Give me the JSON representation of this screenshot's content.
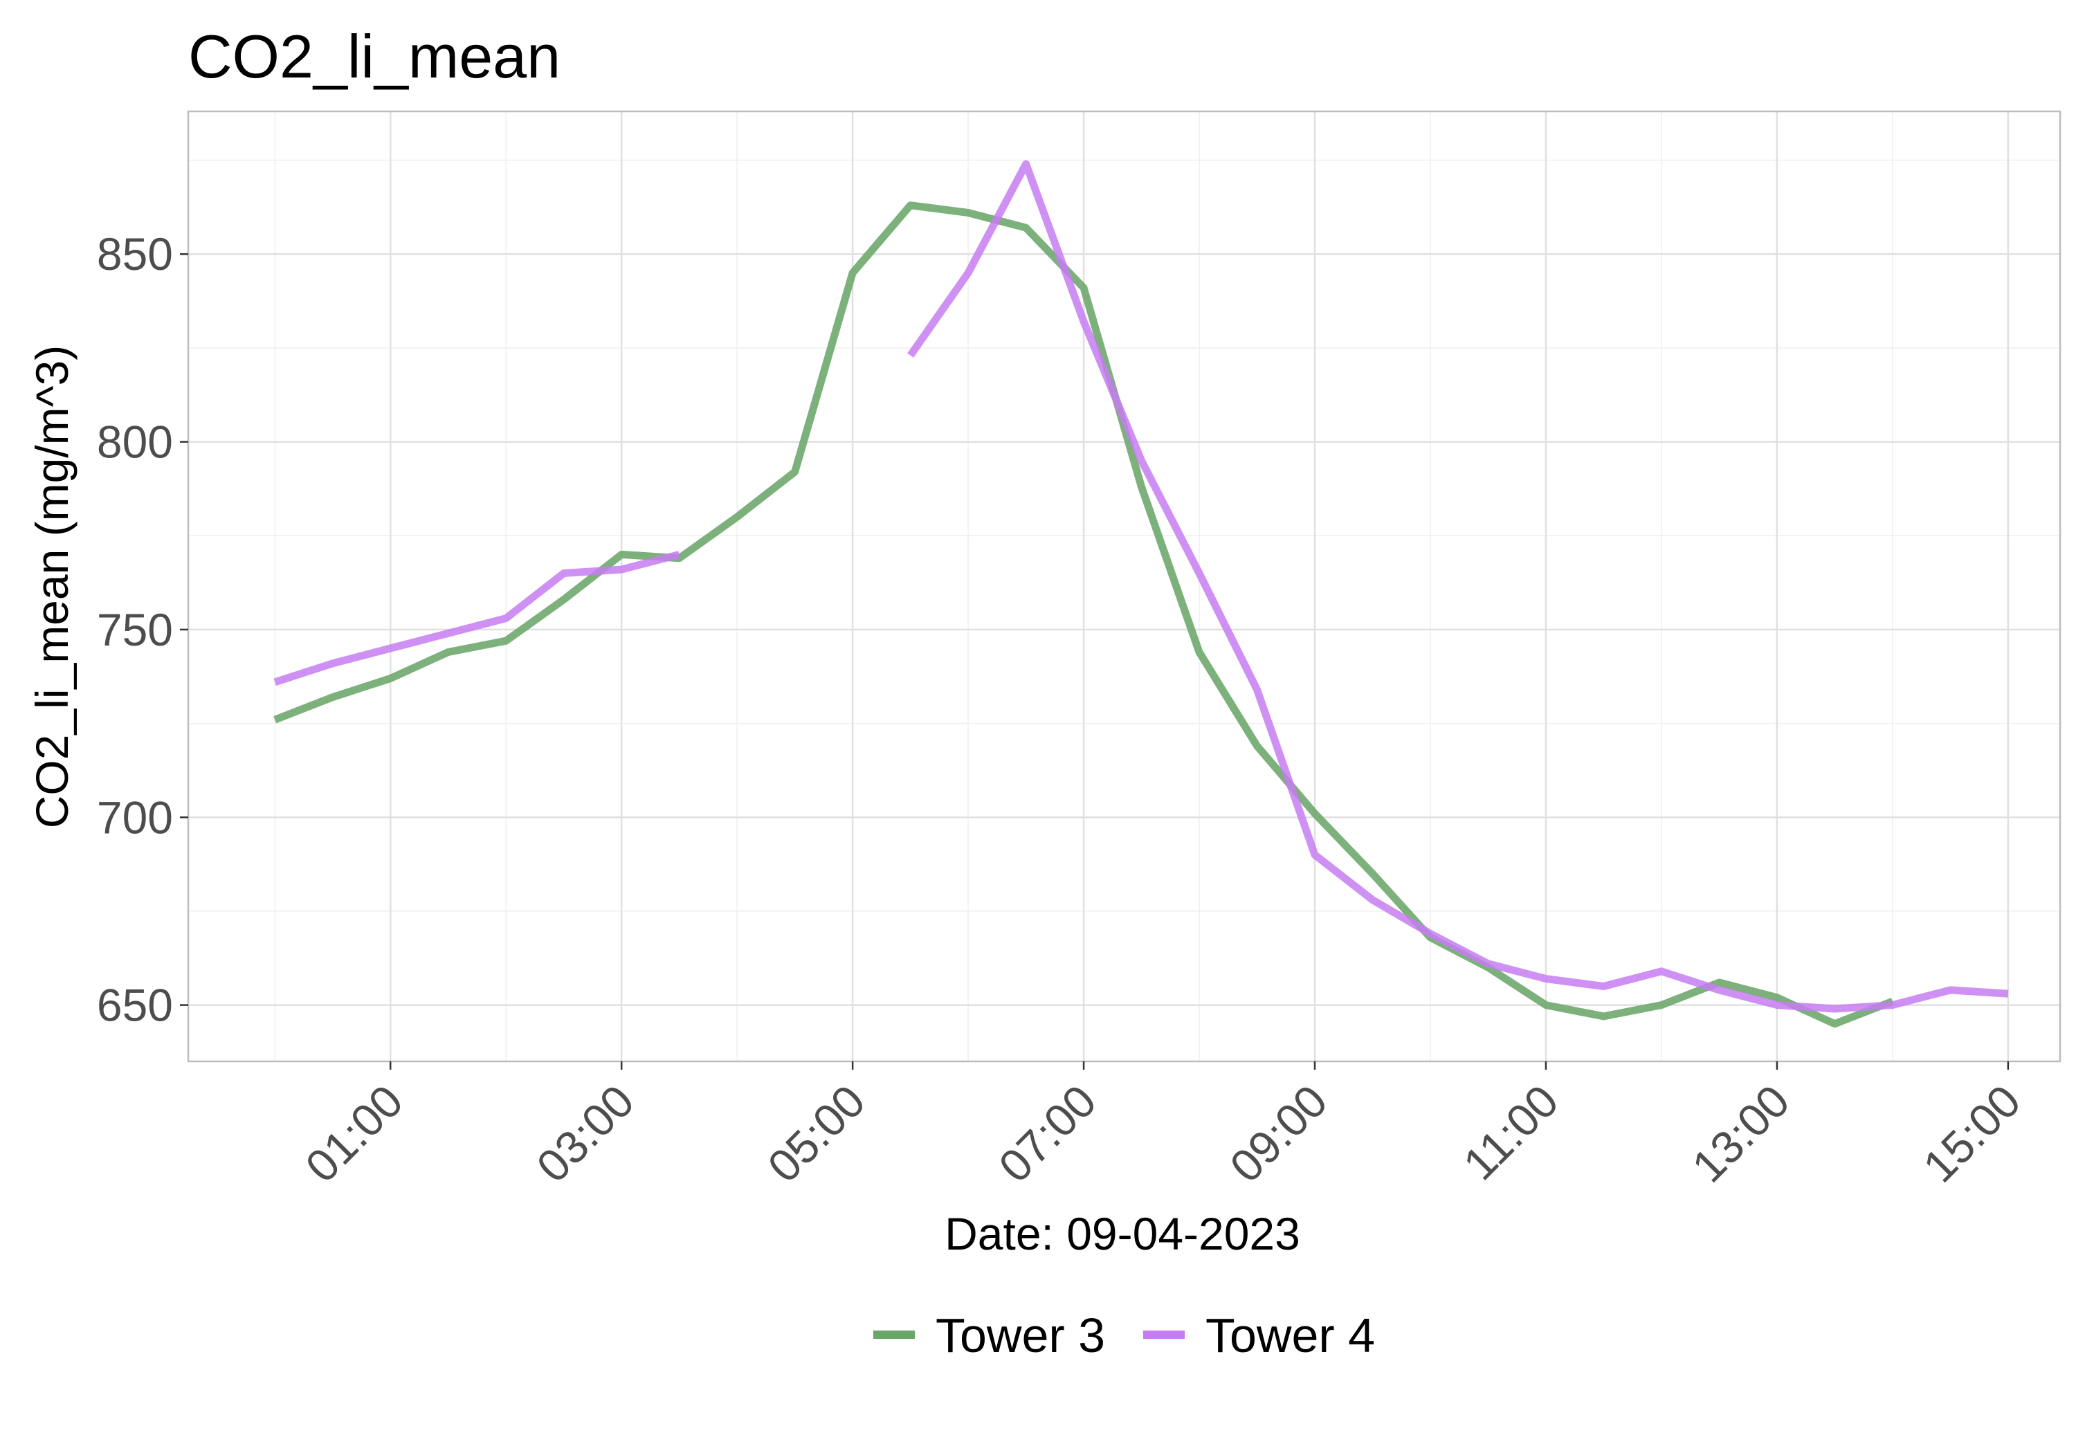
{
  "chart_data": {
    "type": "line",
    "title": "CO2_li_mean",
    "xlabel": "Date: 09-04-2023",
    "ylabel": "CO2_li_mean (mg/m^3)",
    "xlim_hours": [
      -0.75,
      15.45
    ],
    "ylim": [
      635,
      888
    ],
    "x_ticks": [
      {
        "hour": 1,
        "label": "01:00"
      },
      {
        "hour": 3,
        "label": "03:00"
      },
      {
        "hour": 5,
        "label": "05:00"
      },
      {
        "hour": 7,
        "label": "07:00"
      },
      {
        "hour": 9,
        "label": "09:00"
      },
      {
        "hour": 11,
        "label": "11:00"
      },
      {
        "hour": 13,
        "label": "13:00"
      },
      {
        "hour": 15,
        "label": "15:00"
      }
    ],
    "y_ticks": [
      650,
      700,
      750,
      800,
      850
    ],
    "grid": true,
    "legend_position": "bottom",
    "series": [
      {
        "name": "Tower 3",
        "color": "#6aa66a",
        "segments": [
          {
            "x": [
              0,
              0.5,
              1,
              1.5,
              2,
              2.5,
              3,
              3.5,
              4,
              4.5,
              5,
              5.5,
              6,
              6.5,
              7,
              7.5,
              8,
              8.5,
              9,
              9.5,
              10,
              10.5,
              11,
              11.5,
              12,
              12.5,
              13,
              13.5,
              14
            ],
            "y": [
              726,
              732,
              737,
              744,
              747,
              758,
              770,
              769,
              780,
              792,
              845,
              863,
              861,
              857,
              841,
              788,
              744,
              719,
              701,
              685,
              668,
              660,
              650,
              647,
              650,
              656,
              652,
              645,
              651
            ]
          }
        ]
      },
      {
        "name": "Tower 4",
        "color": "#c77cf2",
        "segments": [
          {
            "x": [
              0,
              0.5,
              1,
              1.5,
              2,
              2.5,
              3,
              3.5
            ],
            "y": [
              736,
              741,
              745,
              749,
              753,
              765,
              766,
              770
            ]
          },
          {
            "x": [
              5.5,
              6,
              6.5,
              7,
              7.5,
              8,
              8.5,
              9,
              9.5,
              10,
              10.5,
              11,
              11.5,
              12,
              12.5,
              13,
              13.5,
              14,
              14.5,
              15
            ],
            "y": [
              823,
              845,
              874,
              832,
              795,
              765,
              734,
              690,
              678,
              669,
              661,
              657,
              655,
              659,
              654,
              650,
              649,
              650,
              654,
              653
            ]
          }
        ]
      }
    ]
  }
}
